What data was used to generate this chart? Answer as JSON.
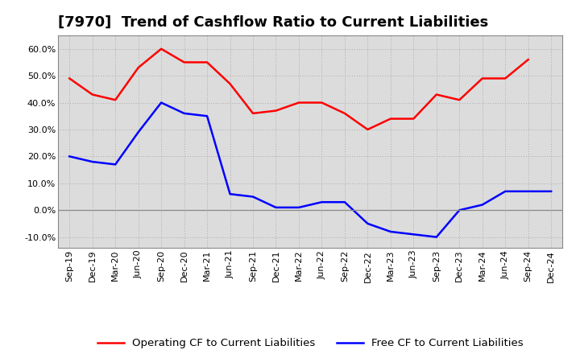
{
  "title": "[7970]  Trend of Cashflow Ratio to Current Liabilities",
  "x_labels": [
    "Sep-19",
    "Dec-19",
    "Mar-20",
    "Jun-20",
    "Sep-20",
    "Dec-20",
    "Mar-21",
    "Jun-21",
    "Sep-21",
    "Dec-21",
    "Mar-22",
    "Jun-22",
    "Sep-22",
    "Dec-22",
    "Mar-23",
    "Jun-23",
    "Sep-23",
    "Dec-23",
    "Mar-24",
    "Jun-24",
    "Sep-24",
    "Dec-24"
  ],
  "operating_cf": [
    0.49,
    0.43,
    0.41,
    0.53,
    0.6,
    0.55,
    0.55,
    0.47,
    0.36,
    0.37,
    0.4,
    0.4,
    0.36,
    0.3,
    0.34,
    0.34,
    0.43,
    0.41,
    0.49,
    0.49,
    0.56,
    null
  ],
  "free_cf": [
    0.2,
    0.18,
    0.17,
    0.29,
    0.4,
    0.36,
    0.35,
    0.06,
    0.05,
    0.01,
    0.01,
    0.03,
    0.03,
    -0.05,
    -0.08,
    -0.09,
    -0.1,
    0.0,
    0.02,
    0.07,
    null,
    0.07
  ],
  "operating_color": "#FF0000",
  "free_color": "#0000FF",
  "bg_color": "#FFFFFF",
  "plot_bg_color": "#DCDCDC",
  "ylim": [
    -0.14,
    0.65
  ],
  "yticks": [
    -0.1,
    0.0,
    0.1,
    0.2,
    0.3,
    0.4,
    0.5,
    0.6
  ],
  "legend_op": "Operating CF to Current Liabilities",
  "legend_free": "Free CF to Current Liabilities",
  "title_fontsize": 13,
  "tick_fontsize": 8,
  "legend_fontsize": 9.5
}
